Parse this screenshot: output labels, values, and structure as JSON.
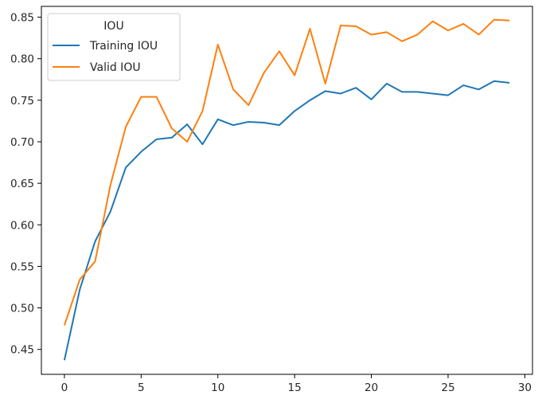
{
  "chart_data": {
    "type": "line",
    "x": [
      0,
      1,
      2,
      3,
      4,
      5,
      6,
      7,
      8,
      9,
      10,
      11,
      12,
      13,
      14,
      15,
      16,
      17,
      18,
      19,
      20,
      21,
      22,
      23,
      24,
      25,
      26,
      27,
      28,
      29
    ],
    "series": [
      {
        "name": "Training IOU",
        "color": "#1f77b4",
        "values": [
          0.437,
          0.522,
          0.58,
          0.616,
          0.669,
          0.688,
          0.703,
          0.705,
          0.721,
          0.697,
          0.727,
          0.72,
          0.724,
          0.723,
          0.72,
          0.737,
          0.75,
          0.761,
          0.758,
          0.765,
          0.751,
          0.77,
          0.76,
          0.76,
          0.758,
          0.756,
          0.768,
          0.763,
          0.773,
          0.771
        ]
      },
      {
        "name": "Valid IOU",
        "color": "#ff7f0e",
        "values": [
          0.479,
          0.534,
          0.556,
          0.648,
          0.718,
          0.754,
          0.754,
          0.716,
          0.7,
          0.737,
          0.817,
          0.763,
          0.744,
          0.783,
          0.809,
          0.78,
          0.836,
          0.77,
          0.84,
          0.839,
          0.829,
          0.832,
          0.821,
          0.829,
          0.845,
          0.834,
          0.842,
          0.829,
          0.847,
          0.846
        ]
      }
    ],
    "title": "",
    "xlabel": "",
    "ylabel": "",
    "xlim": [
      -1.5,
      30.5
    ],
    "ylim": [
      0.42,
      0.863
    ],
    "xticks": [
      0,
      5,
      10,
      15,
      20,
      25,
      30
    ],
    "yticks": [
      0.45,
      0.5,
      0.55,
      0.6,
      0.65,
      0.7,
      0.75,
      0.8,
      0.85
    ],
    "xtick_labels": [
      "0",
      "5",
      "10",
      "15",
      "20",
      "25",
      "30"
    ],
    "ytick_labels": [
      "0.45",
      "0.50",
      "0.55",
      "0.60",
      "0.65",
      "0.70",
      "0.75",
      "0.80",
      "0.85"
    ],
    "grid": false,
    "legend": {
      "title": "IOU",
      "position": "top-left",
      "entries": [
        "Training IOU",
        "Valid IOU"
      ]
    }
  }
}
